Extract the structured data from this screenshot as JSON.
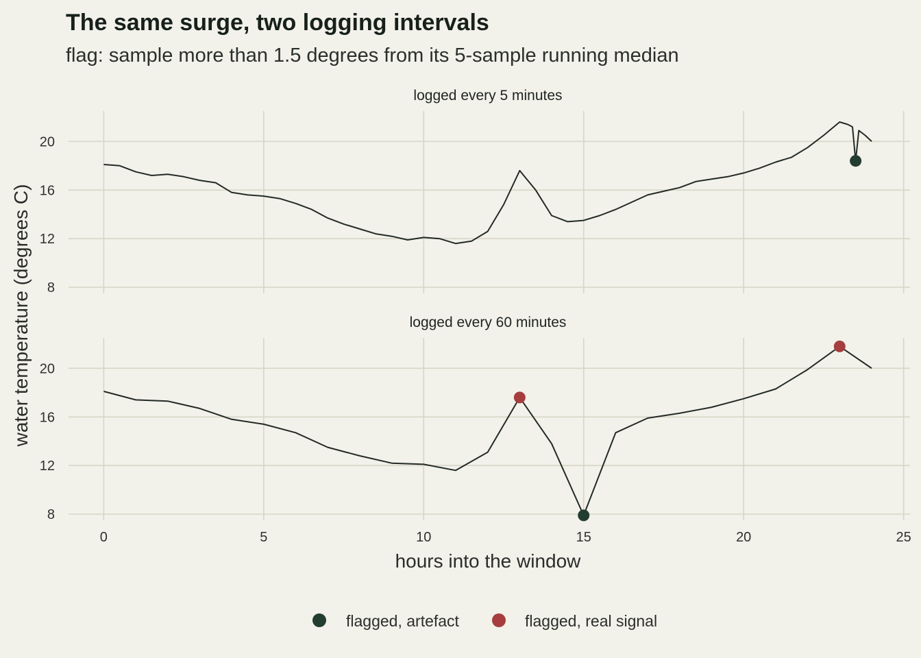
{
  "title": "The same surge, two logging intervals",
  "subtitle": "flag: sample more than 1.5 degrees from its 5-sample running median",
  "colors": {
    "background": "#f2f1ea",
    "grid": "#d7d6c6",
    "line": "#232a25",
    "artefact": "#233d30",
    "real_signal": "#a63d3e"
  },
  "chart_data": {
    "type": "line",
    "x_label": "hours into the window",
    "y_label": "water temperature (degrees C)",
    "x_ticks": [
      0,
      5,
      10,
      15,
      20,
      25
    ],
    "y_ticks": [
      8,
      12,
      16,
      20
    ],
    "xlim": [
      -1.1,
      25.2
    ],
    "ylim": [
      7.5,
      22.5
    ],
    "grid": true,
    "legend_position": "bottom",
    "legend": [
      {
        "label": "flagged, artefact",
        "color": "#233d30"
      },
      {
        "label": "flagged, real signal",
        "color": "#a63d3e"
      }
    ],
    "panels": [
      {
        "strip": "logged every 5 minutes",
        "x": [
          0,
          0.5,
          1,
          1.5,
          2,
          2.5,
          3,
          3.5,
          4,
          4.5,
          5,
          5.5,
          6,
          6.5,
          7,
          7.5,
          8,
          8.5,
          9,
          9.5,
          10,
          10.5,
          11,
          11.5,
          12,
          12.5,
          13,
          13.5,
          14,
          14.5,
          15,
          15.5,
          16,
          16.5,
          17,
          17.5,
          18,
          18.5,
          19,
          19.5,
          20,
          20.5,
          21,
          21.5,
          22,
          22.5,
          23,
          23.25,
          23.4,
          23.5,
          23.6,
          23.8,
          24
        ],
        "y": [
          18.1,
          18.0,
          17.5,
          17.2,
          17.3,
          17.1,
          16.8,
          16.6,
          15.8,
          15.6,
          15.5,
          15.3,
          14.9,
          14.4,
          13.7,
          13.2,
          12.8,
          12.4,
          12.2,
          11.9,
          12.1,
          12.0,
          11.6,
          11.8,
          12.6,
          14.8,
          17.6,
          16.0,
          13.9,
          13.4,
          13.5,
          13.9,
          14.4,
          15.0,
          15.6,
          15.9,
          16.2,
          16.7,
          16.9,
          17.1,
          17.4,
          17.8,
          18.3,
          18.7,
          19.5,
          20.5,
          21.6,
          21.4,
          21.2,
          18.4,
          20.9,
          20.5,
          20.0
        ],
        "flags": [
          {
            "x": 23.5,
            "y": 18.4,
            "kind": "artefact"
          }
        ]
      },
      {
        "strip": "logged every 60 minutes",
        "x": [
          0,
          1,
          2,
          3,
          4,
          5,
          6,
          7,
          8,
          9,
          10,
          11,
          12,
          13,
          14,
          15,
          16,
          17,
          18,
          19,
          20,
          21,
          22,
          23,
          24
        ],
        "y": [
          18.1,
          17.4,
          17.3,
          16.7,
          15.8,
          15.4,
          14.7,
          13.5,
          12.8,
          12.2,
          12.1,
          11.6,
          13.1,
          17.6,
          13.8,
          7.9,
          14.7,
          15.9,
          16.3,
          16.8,
          17.5,
          18.3,
          19.9,
          21.8,
          20.0
        ],
        "flags": [
          {
            "x": 13,
            "y": 17.6,
            "kind": "real"
          },
          {
            "x": 15,
            "y": 7.9,
            "kind": "artefact"
          },
          {
            "x": 23,
            "y": 21.8,
            "kind": "real"
          }
        ]
      }
    ]
  }
}
